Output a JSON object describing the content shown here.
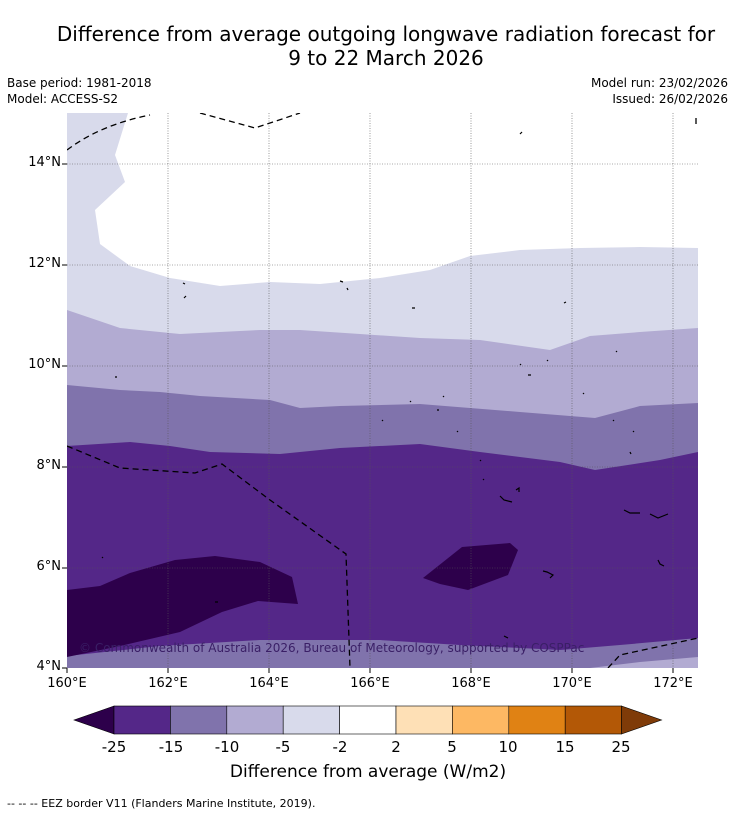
{
  "title_line1": "Difference from average outgoing longwave radiation forecast for",
  "title_line2": "9 to 22 March 2026",
  "base_period": "Base period: 1981-2018",
  "model": "Model: ACCESS-S2",
  "model_run": "Model run: 23/02/2026",
  "issued": "Issued: 26/02/2026",
  "lat_labels": [
    "14°N",
    "12°N",
    "10°N",
    "8°N",
    "6°N",
    "4°N"
  ],
  "lon_labels": [
    "160°E",
    "162°E",
    "164°E",
    "166°E",
    "168°E",
    "170°E",
    "172°E"
  ],
  "copyright": "© Commonwealth of Australia 2026, Bureau of Meteorology, supported by COSPPac",
  "colorbar": {
    "ticks": [
      "-25",
      "-15",
      "-10",
      "-5",
      "-2",
      "2",
      "5",
      "10",
      "15",
      "25"
    ],
    "colors": [
      "#2d004b",
      "#542788",
      "#8073ac",
      "#b2abd2",
      "#d8daeb",
      "#ffffff",
      "#fee0b6",
      "#fdb863",
      "#e08214",
      "#b35806",
      "#7f3b08"
    ],
    "title": "Difference from average (W/m2)"
  },
  "legend_note": "--  --  -- EEZ border V11 (Flanders Marine Institute, 2019)."
}
